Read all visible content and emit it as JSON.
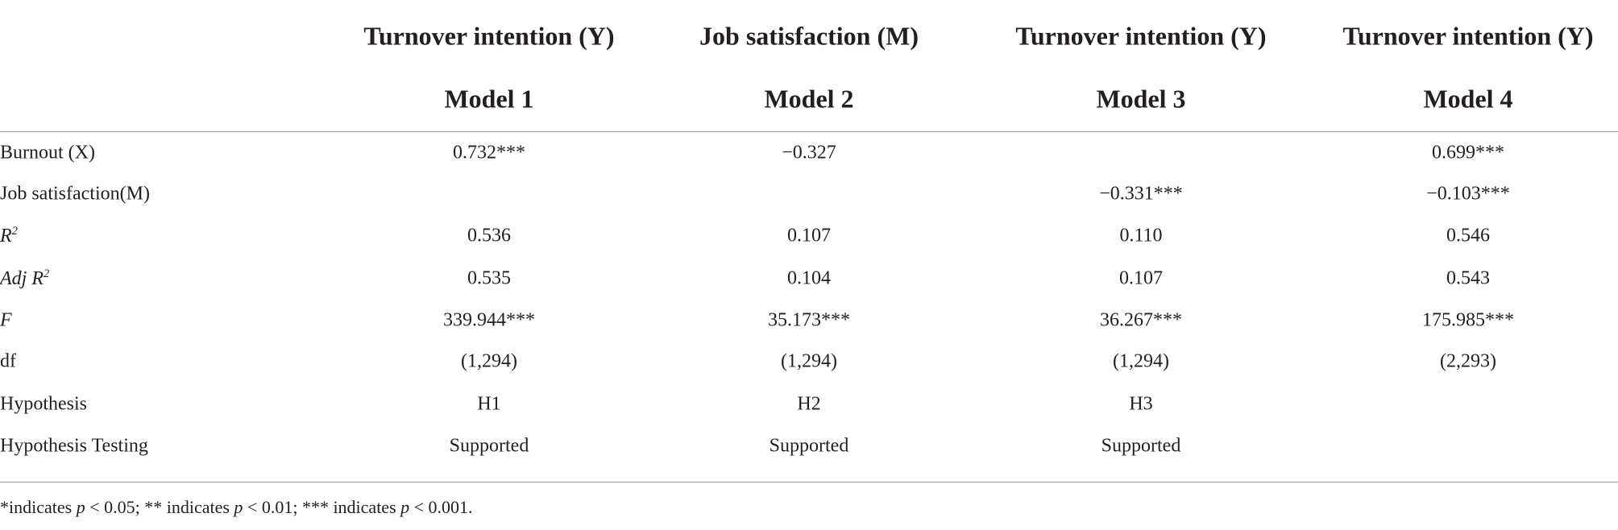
{
  "table": {
    "header": {
      "outcomes": [
        "Turnover intention (Y)",
        "Job satisfaction (M)",
        "Turnover intention (Y)",
        "Turnover intention (Y)"
      ],
      "models": [
        "Model 1",
        "Model 2",
        "Model 3",
        "Model 4"
      ]
    },
    "rows": [
      {
        "label": [
          {
            "text": "Burnout (X)"
          }
        ],
        "cells": [
          "0.732***",
          "−0.327",
          null,
          "0.699***"
        ]
      },
      {
        "label": [
          {
            "text": "Job satisfaction(M)"
          }
        ],
        "cells": [
          null,
          null,
          "−0.331***",
          "−0.103***"
        ]
      },
      {
        "label": [
          {
            "text": "R",
            "italic": true
          },
          {
            "text": "2",
            "italic": true,
            "sup": true
          }
        ],
        "cells": [
          "0.536",
          "0.107",
          "0.110",
          "0.546"
        ]
      },
      {
        "label": [
          {
            "text": "Adj R",
            "italic": true
          },
          {
            "text": "2",
            "italic": true,
            "sup": true
          }
        ],
        "cells": [
          "0.535",
          "0.104",
          "0.107",
          "0.543"
        ]
      },
      {
        "label": [
          {
            "text": "F",
            "italic": true
          }
        ],
        "cells": [
          "339.944***",
          "35.173***",
          "36.267***",
          "175.985***"
        ]
      },
      {
        "label": [
          {
            "text": "df"
          }
        ],
        "cells": [
          "(1,294)",
          "(1,294)",
          "(1,294)",
          "(2,293)"
        ]
      },
      {
        "label": [
          {
            "text": "Hypothesis"
          }
        ],
        "cells": [
          "H1",
          "H2",
          "H3",
          null
        ]
      },
      {
        "label": [
          {
            "text": "Hypothesis Testing"
          }
        ],
        "cells": [
          "Supported",
          "Supported",
          "Supported",
          null
        ]
      }
    ]
  },
  "footnote": [
    {
      "text": "*indicates "
    },
    {
      "text": "p",
      "italic": true
    },
    {
      "text": " < 0.05; ** indicates "
    },
    {
      "text": "p",
      "italic": true
    },
    {
      "text": " < 0.01; *** indicates "
    },
    {
      "text": "p",
      "italic": true
    },
    {
      "text": " < 0.001."
    }
  ]
}
